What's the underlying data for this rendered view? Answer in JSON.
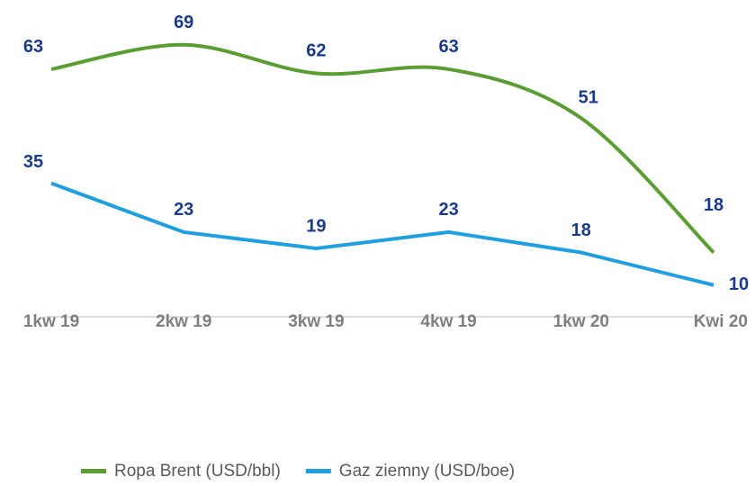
{
  "chart_data": {
    "type": "line",
    "categories": [
      "1kw 19",
      "2kw 19",
      "3kw 19",
      "4kw 19",
      "1kw 20",
      "Kwi 20"
    ],
    "series": [
      {
        "name": "Ropa Brent (USD/bbl)",
        "color": "#5a9e33",
        "values": [
          63,
          69,
          62,
          63,
          51,
          18
        ]
      },
      {
        "name": "Gaz ziemny (USD/boe)",
        "color": "#1f9fe0",
        "values": [
          35,
          23,
          19,
          23,
          18,
          10
        ]
      }
    ],
    "ylim": [
      0,
      80
    ],
    "grid": false,
    "legend": "bottom"
  }
}
